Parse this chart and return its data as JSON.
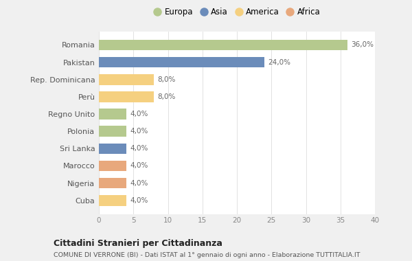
{
  "countries": [
    "Romania",
    "Pakistan",
    "Rep. Dominicana",
    "Perù",
    "Regno Unito",
    "Polonia",
    "Sri Lanka",
    "Marocco",
    "Nigeria",
    "Cuba"
  ],
  "values": [
    36.0,
    24.0,
    8.0,
    8.0,
    4.0,
    4.0,
    4.0,
    4.0,
    4.0,
    4.0
  ],
  "labels": [
    "36,0%",
    "24,0%",
    "8,0%",
    "8,0%",
    "4,0%",
    "4,0%",
    "4,0%",
    "4,0%",
    "4,0%",
    "4,0%"
  ],
  "continents": [
    "Europa",
    "Asia",
    "America",
    "America",
    "Europa",
    "Europa",
    "Asia",
    "Africa",
    "Africa",
    "America"
  ],
  "colors": {
    "Europa": "#b5c98e",
    "Asia": "#6b8cba",
    "America": "#f5d080",
    "Africa": "#e8a87c"
  },
  "legend_order": [
    "Europa",
    "Asia",
    "America",
    "Africa"
  ],
  "title": "Cittadini Stranieri per Cittadinanza",
  "subtitle": "COMUNE DI VERRONE (BI) - Dati ISTAT al 1° gennaio di ogni anno - Elaborazione TUTTITALIA.IT",
  "xlim": [
    0,
    40
  ],
  "xticks": [
    0,
    5,
    10,
    15,
    20,
    25,
    30,
    35,
    40
  ],
  "background_color": "#f0f0f0",
  "plot_background": "#ffffff"
}
